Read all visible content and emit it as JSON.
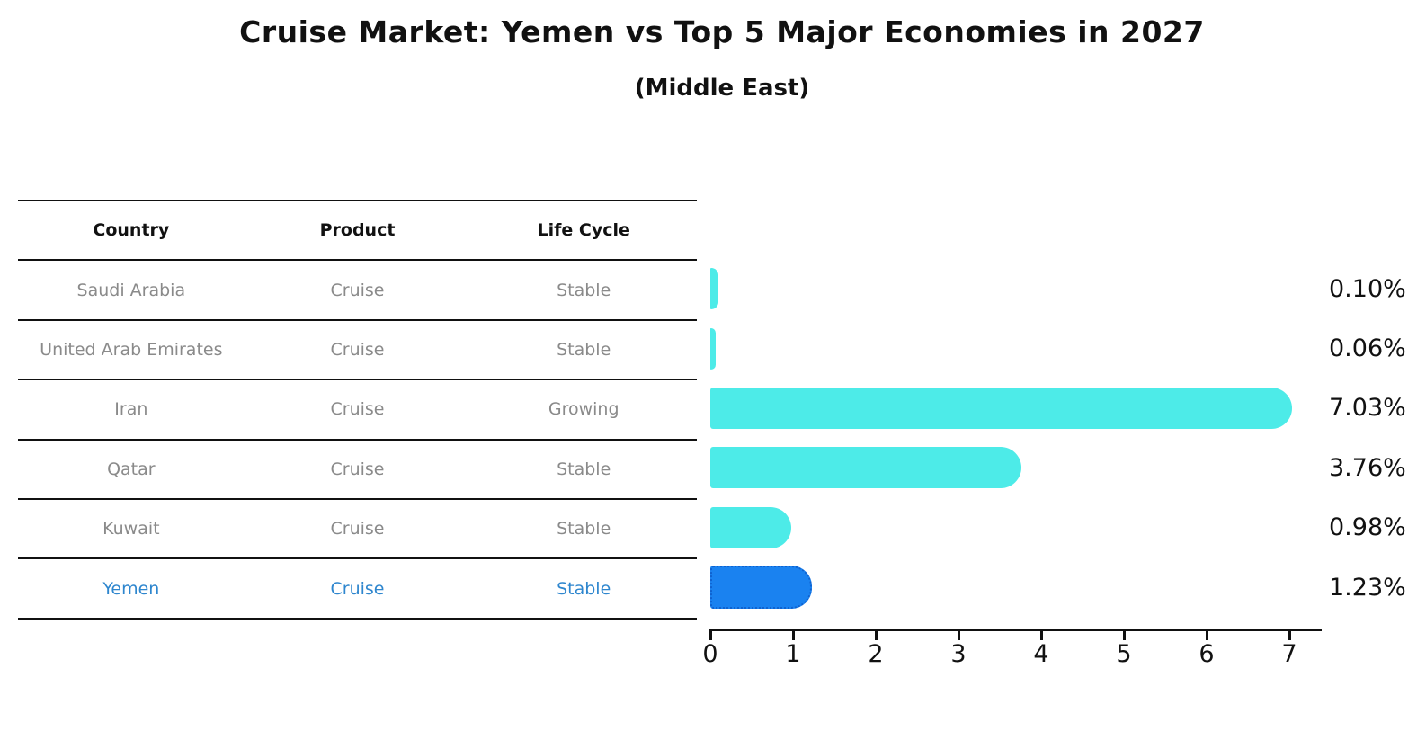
{
  "title": "Cruise Market: Yemen vs Top 5 Major Economies in 2027",
  "subtitle": "(Middle East)",
  "table": {
    "headers": [
      "Country",
      "Product",
      "Life Cycle"
    ],
    "rows": [
      {
        "country": "Saudi Arabia",
        "product": "Cruise",
        "life_cycle": "Stable",
        "highlight": false
      },
      {
        "country": "United Arab Emirates",
        "product": "Cruise",
        "life_cycle": "Stable",
        "highlight": false
      },
      {
        "country": "Iran",
        "product": "Cruise",
        "life_cycle": "Growing",
        "highlight": false
      },
      {
        "country": "Qatar",
        "product": "Cruise",
        "life_cycle": "Stable",
        "highlight": false
      },
      {
        "country": "Kuwait",
        "product": "Cruise",
        "life_cycle": "Stable",
        "highlight": false
      },
      {
        "country": "Yemen",
        "product": "Cruise",
        "life_cycle": "Stable",
        "highlight": true
      }
    ]
  },
  "chart_data": {
    "type": "bar",
    "orientation": "horizontal",
    "title": "Cruise Market: Yemen vs Top 5 Major Economies in 2027",
    "subtitle": "(Middle East)",
    "categories": [
      "Saudi Arabia",
      "United Arab Emirates",
      "Iran",
      "Qatar",
      "Kuwait",
      "Yemen"
    ],
    "values": [
      0.1,
      0.06,
      7.03,
      3.76,
      0.98,
      1.23
    ],
    "value_labels": [
      "0.10%",
      "0.06%",
      "7.03%",
      "3.76%",
      "0.98%",
      "1.23%"
    ],
    "x_ticks": [
      "0",
      "1",
      "2",
      "3",
      "4",
      "5",
      "6",
      "7"
    ],
    "xlim": [
      0,
      7.4
    ],
    "grid": false,
    "legend": false,
    "highlight_index": 5,
    "colors": {
      "bar": "#4DEBE8",
      "highlight_bar": "#1A82F0",
      "highlight_border": "#0f62d0",
      "highlight_text": "#2E86CE",
      "table_text": "#8a8a8a",
      "axis": "#111111"
    }
  }
}
